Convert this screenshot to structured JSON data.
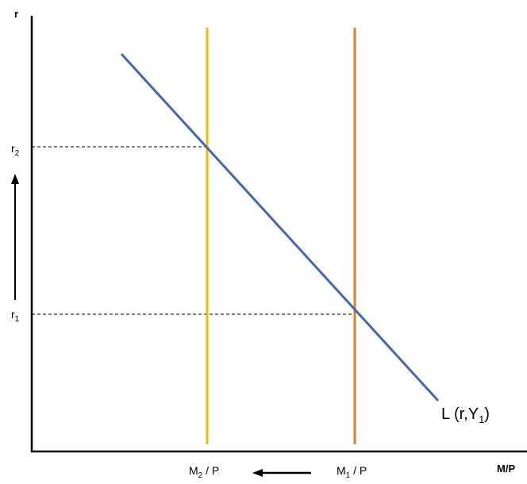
{
  "y_axis": {
    "label": "r"
  },
  "x_axis": {
    "label": "M/P"
  },
  "levels": [
    {
      "base": "r",
      "sub": "2"
    },
    {
      "base": "r",
      "sub": "1"
    }
  ],
  "supply_lines": [
    {
      "base": "M",
      "sub": "2",
      "suffix": " / P",
      "color": "#F5B700"
    },
    {
      "base": "M",
      "sub": "1",
      "suffix": " / P",
      "color": "#E07B29"
    }
  ],
  "demand_curve": {
    "prefix": "L (r,Y",
    "sub": "1",
    "suffix": ")",
    "color": "#4466B5"
  },
  "colors": {
    "axis": "#000000",
    "guide": "#000000"
  }
}
